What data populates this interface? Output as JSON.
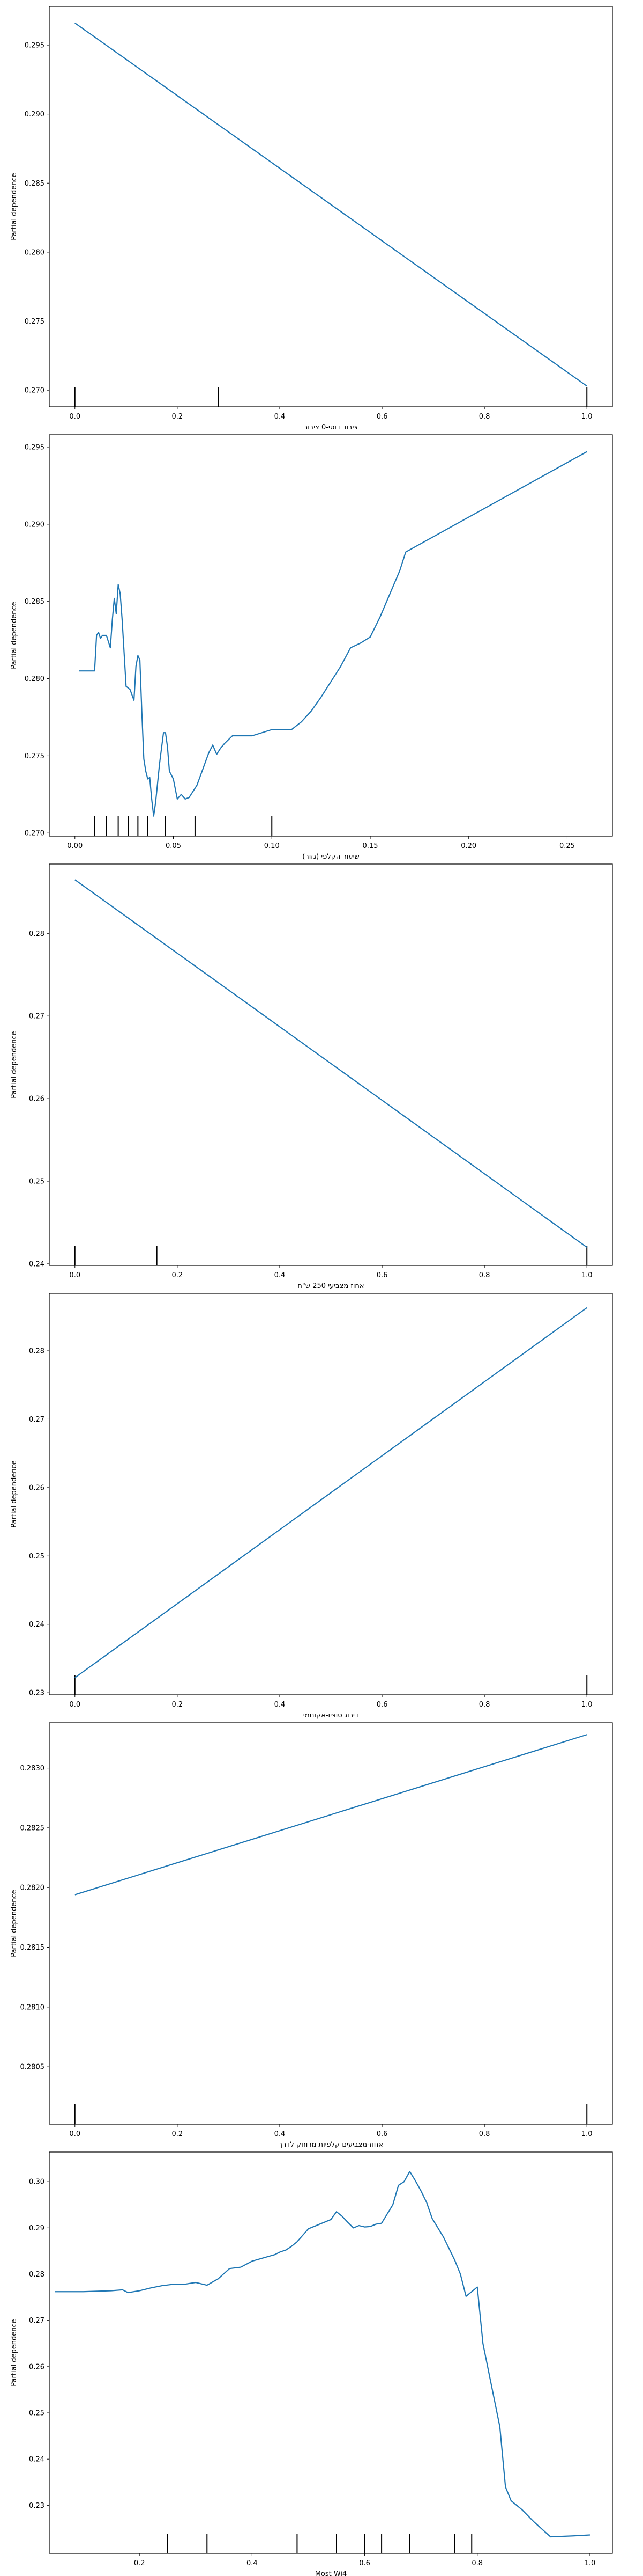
{
  "colors": {
    "line": "#1f77b4",
    "axis": "#000000",
    "rug": "#000000",
    "background": "#ffffff"
  },
  "chart_data": [
    {
      "type": "line",
      "xlabel": "ציבור דוסי-0 ציבור",
      "ylabel": "Partial dependence",
      "xlim": [
        -0.05,
        1.05
      ],
      "ylim": [
        0.2688,
        0.2978
      ],
      "xticks": [
        0.0,
        0.2,
        0.4,
        0.6,
        0.8,
        1.0
      ],
      "xtick_labels": [
        "0.0",
        "0.2",
        "0.4",
        "0.6",
        "0.8",
        "1.0"
      ],
      "yticks": [
        0.27,
        0.275,
        0.28,
        0.285,
        0.29,
        0.295
      ],
      "ytick_labels": [
        "0.270",
        "0.275",
        "0.280",
        "0.285",
        "0.290",
        "0.295"
      ],
      "series": [
        {
          "x": [
            0.0,
            1.0
          ],
          "y": [
            0.2966,
            0.2703
          ]
        }
      ],
      "rug": [
        0.0,
        0.28,
        1.0
      ]
    },
    {
      "type": "line",
      "xlabel": "שיעור הקלפי (גזור)",
      "ylabel": "Partial dependence",
      "xlim": [
        -0.013,
        0.273
      ],
      "ylim": [
        0.2698,
        0.2958
      ],
      "xticks": [
        0.0,
        0.05,
        0.1,
        0.15,
        0.2,
        0.25
      ],
      "xtick_labels": [
        "0.00",
        "0.05",
        "0.10",
        "0.15",
        "0.20",
        "0.25"
      ],
      "yticks": [
        0.27,
        0.275,
        0.28,
        0.285,
        0.29,
        0.295
      ],
      "ytick_labels": [
        "0.270",
        "0.275",
        "0.280",
        "0.285",
        "0.290",
        "0.295"
      ],
      "series": [
        {
          "x": [
            0.002,
            0.004,
            0.006,
            0.008,
            0.01,
            0.011,
            0.012,
            0.013,
            0.014,
            0.016,
            0.018,
            0.019,
            0.02,
            0.021,
            0.022,
            0.023,
            0.024,
            0.026,
            0.028,
            0.03,
            0.031,
            0.032,
            0.033,
            0.034,
            0.035,
            0.036,
            0.037,
            0.038,
            0.039,
            0.04,
            0.041,
            0.043,
            0.045,
            0.046,
            0.047,
            0.048,
            0.05,
            0.052,
            0.054,
            0.056,
            0.058,
            0.06,
            0.062,
            0.064,
            0.066,
            0.068,
            0.07,
            0.072,
            0.074,
            0.076,
            0.08,
            0.085,
            0.09,
            0.095,
            0.1,
            0.105,
            0.11,
            0.115,
            0.12,
            0.125,
            0.13,
            0.135,
            0.14,
            0.145,
            0.15,
            0.155,
            0.16,
            0.165,
            0.168,
            0.26
          ],
          "y": [
            0.2805,
            0.2805,
            0.2805,
            0.2805,
            0.2805,
            0.2828,
            0.283,
            0.2826,
            0.2828,
            0.2828,
            0.282,
            0.2838,
            0.2852,
            0.2842,
            0.2861,
            0.2855,
            0.2838,
            0.2795,
            0.2793,
            0.2786,
            0.2808,
            0.2815,
            0.2812,
            0.2778,
            0.2748,
            0.274,
            0.2735,
            0.2736,
            0.2722,
            0.2711,
            0.272,
            0.2745,
            0.2765,
            0.2765,
            0.2756,
            0.274,
            0.2735,
            0.2722,
            0.2725,
            0.2722,
            0.2723,
            0.2727,
            0.2731,
            0.2738,
            0.2745,
            0.2752,
            0.2757,
            0.2751,
            0.2755,
            0.2758,
            0.2763,
            0.2763,
            0.2763,
            0.2765,
            0.2767,
            0.2767,
            0.2767,
            0.2772,
            0.2779,
            0.2788,
            0.2798,
            0.2808,
            0.282,
            0.2823,
            0.2827,
            0.284,
            0.2855,
            0.287,
            0.2882,
            0.2947
          ]
        }
      ],
      "rug": [
        0.01,
        0.016,
        0.022,
        0.027,
        0.032,
        0.037,
        0.046,
        0.061,
        0.1
      ]
    },
    {
      "type": "line",
      "xlabel": "אחוז מצביעי 250 ש\"ח",
      "ylabel": "Partial dependence",
      "xlim": [
        -0.05,
        1.05
      ],
      "ylim": [
        0.2398,
        0.2884
      ],
      "xticks": [
        0.0,
        0.2,
        0.4,
        0.6,
        0.8,
        1.0
      ],
      "xtick_labels": [
        "0.0",
        "0.2",
        "0.4",
        "0.6",
        "0.8",
        "1.0"
      ],
      "yticks": [
        0.24,
        0.25,
        0.26,
        0.27,
        0.28
      ],
      "ytick_labels": [
        "0.24",
        "0.25",
        "0.26",
        "0.27",
        "0.28"
      ],
      "series": [
        {
          "x": [
            0.0,
            1.0
          ],
          "y": [
            0.2865,
            0.242
          ]
        }
      ],
      "rug": [
        0.0,
        0.16,
        1.0
      ]
    },
    {
      "type": "line",
      "xlabel": "דירוג סוציו-אקונומי",
      "ylabel": "Partial dependence",
      "xlim": [
        -0.05,
        1.05
      ],
      "ylim": [
        0.2297,
        0.2884
      ],
      "xticks": [
        0.0,
        0.2,
        0.4,
        0.6,
        0.8,
        1.0
      ],
      "xtick_labels": [
        "0.0",
        "0.2",
        "0.4",
        "0.6",
        "0.8",
        "1.0"
      ],
      "yticks": [
        0.23,
        0.24,
        0.25,
        0.26,
        0.27,
        0.28
      ],
      "ytick_labels": [
        "0.23",
        "0.24",
        "0.25",
        "0.26",
        "0.27",
        "0.28"
      ],
      "series": [
        {
          "x": [
            0.0,
            1.0
          ],
          "y": [
            0.2322,
            0.2863
          ]
        }
      ],
      "rug": [
        0.0,
        1.0
      ]
    },
    {
      "type": "line",
      "xlabel": "אחוז-מצביעים קלפיות מרוחק לדרך",
      "ylabel": "Partial dependence",
      "xlim": [
        -0.05,
        1.05
      ],
      "ylim": [
        0.28002,
        0.28338
      ],
      "xticks": [
        0.0,
        0.2,
        0.4,
        0.6,
        0.8,
        1.0
      ],
      "xtick_labels": [
        "0.0",
        "0.2",
        "0.4",
        "0.6",
        "0.8",
        "1.0"
      ],
      "yticks": [
        0.2805,
        0.281,
        0.2815,
        0.282,
        0.2825,
        0.283
      ],
      "ytick_labels": [
        "0.2805",
        "0.2810",
        "0.2815",
        "0.2820",
        "0.2825",
        "0.2830"
      ],
      "series": [
        {
          "x": [
            0.0,
            1.0
          ],
          "y": [
            0.28194,
            0.28328
          ]
        }
      ],
      "rug": [
        0.0,
        1.0
      ]
    },
    {
      "type": "line",
      "xlabel": "Most Wi4",
      "ylabel": "Partial dependence",
      "xlim": [
        0.04,
        1.04
      ],
      "ylim": [
        0.2196,
        0.3064
      ],
      "xticks": [
        0.2,
        0.4,
        0.6,
        0.8,
        1.0
      ],
      "xtick_labels": [
        "0.2",
        "0.4",
        "0.6",
        "0.8",
        "1.0"
      ],
      "yticks": [
        0.23,
        0.24,
        0.25,
        0.26,
        0.27,
        0.28,
        0.29,
        0.3
      ],
      "ytick_labels": [
        "0.23",
        "0.24",
        "0.25",
        "0.26",
        "0.27",
        "0.28",
        "0.29",
        "0.30"
      ],
      "series": [
        {
          "x": [
            0.05,
            0.1,
            0.15,
            0.17,
            0.18,
            0.2,
            0.22,
            0.24,
            0.26,
            0.28,
            0.3,
            0.32,
            0.34,
            0.36,
            0.38,
            0.4,
            0.42,
            0.44,
            0.45,
            0.46,
            0.47,
            0.48,
            0.5,
            0.52,
            0.54,
            0.55,
            0.56,
            0.57,
            0.58,
            0.59,
            0.6,
            0.61,
            0.62,
            0.63,
            0.64,
            0.65,
            0.66,
            0.67,
            0.68,
            0.69,
            0.7,
            0.71,
            0.72,
            0.74,
            0.76,
            0.77,
            0.78,
            0.79,
            0.8,
            0.81,
            0.82,
            0.83,
            0.84,
            0.85,
            0.86,
            0.88,
            0.9,
            0.93,
            0.97,
            1.0
          ],
          "y": [
            0.2762,
            0.2762,
            0.2764,
            0.2766,
            0.276,
            0.2764,
            0.277,
            0.2775,
            0.2778,
            0.2778,
            0.2782,
            0.2776,
            0.279,
            0.2812,
            0.2815,
            0.2828,
            0.2835,
            0.2842,
            0.2848,
            0.2852,
            0.286,
            0.287,
            0.2898,
            0.2908,
            0.2918,
            0.2935,
            0.2925,
            0.2912,
            0.29,
            0.2905,
            0.2902,
            0.2903,
            0.2908,
            0.291,
            0.293,
            0.295,
            0.2992,
            0.3,
            0.3022,
            0.3002,
            0.298,
            0.2955,
            0.292,
            0.288,
            0.283,
            0.28,
            0.2752,
            0.2762,
            0.2772,
            0.265,
            0.259,
            0.253,
            0.247,
            0.234,
            0.231,
            0.229,
            0.2265,
            0.2232,
            0.2234,
            0.2236
          ]
        }
      ],
      "rug": [
        0.25,
        0.32,
        0.48,
        0.55,
        0.6,
        0.63,
        0.68,
        0.76,
        0.79
      ]
    }
  ]
}
